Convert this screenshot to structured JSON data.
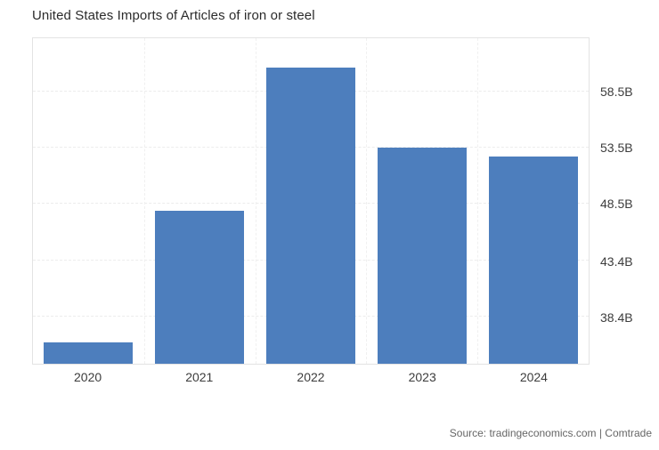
{
  "chart_data": {
    "type": "bar",
    "title": "United States Imports of Articles of iron or steel",
    "categories": [
      "2020",
      "2021",
      "2022",
      "2023",
      "2024"
    ],
    "values": [
      36.1,
      47.9,
      60.7,
      53.5,
      52.7
    ],
    "value_unit": "B",
    "y_tick_values": [
      38.4,
      43.4,
      48.5,
      53.5,
      58.5
    ],
    "y_tick_labels": [
      "38.4B",
      "43.4B",
      "48.5B",
      "53.5B",
      "58.5B"
    ],
    "ylim": [
      34.2,
      63.3
    ],
    "bar_color": "#4d7ebd",
    "grid": true,
    "legend_position": "none",
    "xlabel": "",
    "ylabel": ""
  },
  "source": "Source: tradingeconomics.com | Comtrade"
}
